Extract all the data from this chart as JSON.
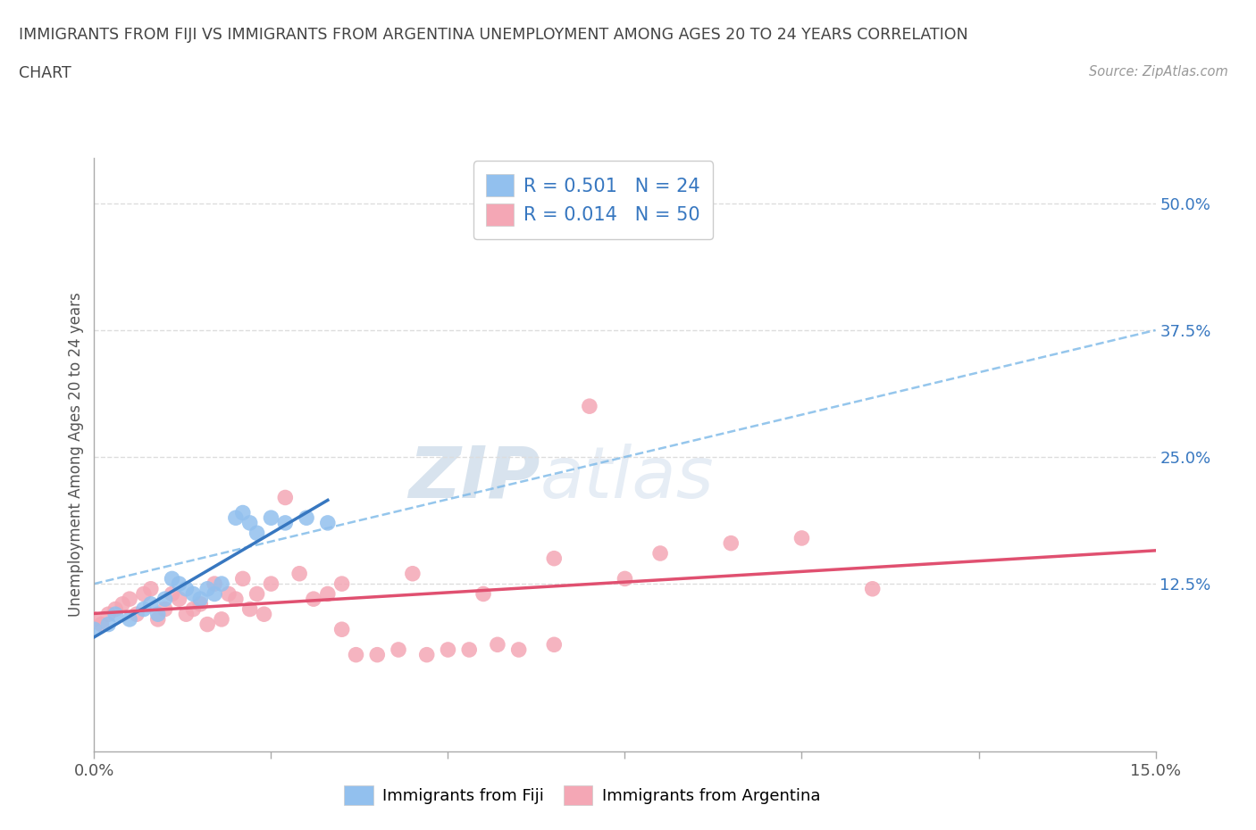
{
  "title_line1": "IMMIGRANTS FROM FIJI VS IMMIGRANTS FROM ARGENTINA UNEMPLOYMENT AMONG AGES 20 TO 24 YEARS CORRELATION",
  "title_line2": "CHART",
  "source": "Source: ZipAtlas.com",
  "ylabel": "Unemployment Among Ages 20 to 24 years",
  "xmin": 0.0,
  "xmax": 0.15,
  "ymin": -0.04,
  "ymax": 0.545,
  "right_yticks": [
    0.125,
    0.25,
    0.375,
    0.5
  ],
  "right_yticklabels": [
    "12.5%",
    "25.0%",
    "37.5%",
    "50.0%"
  ],
  "fiji_R": 0.501,
  "fiji_N": 24,
  "argentina_R": 0.014,
  "argentina_N": 50,
  "fiji_color": "#92C0EE",
  "argentina_color": "#F4A7B5",
  "fiji_line_color": "#3777C0",
  "argentina_line_color": "#E05070",
  "trendline_color": "#7BB8E8",
  "background_color": "#FFFFFF",
  "fiji_x": [
    0.0,
    0.002,
    0.003,
    0.005,
    0.007,
    0.008,
    0.009,
    0.01,
    0.011,
    0.012,
    0.013,
    0.014,
    0.015,
    0.016,
    0.017,
    0.018,
    0.02,
    0.021,
    0.022,
    0.023,
    0.025,
    0.027,
    0.03,
    0.033
  ],
  "fiji_y": [
    0.08,
    0.085,
    0.095,
    0.09,
    0.1,
    0.105,
    0.095,
    0.11,
    0.13,
    0.125,
    0.12,
    0.115,
    0.11,
    0.12,
    0.115,
    0.125,
    0.19,
    0.195,
    0.185,
    0.175,
    0.19,
    0.185,
    0.19,
    0.185
  ],
  "argentina_x": [
    0.0,
    0.001,
    0.002,
    0.003,
    0.004,
    0.005,
    0.006,
    0.007,
    0.008,
    0.009,
    0.01,
    0.011,
    0.012,
    0.013,
    0.014,
    0.015,
    0.016,
    0.017,
    0.018,
    0.019,
    0.02,
    0.021,
    0.022,
    0.023,
    0.024,
    0.025,
    0.027,
    0.029,
    0.031,
    0.033,
    0.035,
    0.037,
    0.04,
    0.043,
    0.047,
    0.05,
    0.053,
    0.057,
    0.06,
    0.065,
    0.07,
    0.08,
    0.09,
    0.1,
    0.11,
    0.035,
    0.045,
    0.055,
    0.065,
    0.075
  ],
  "argentina_y": [
    0.09,
    0.085,
    0.095,
    0.1,
    0.105,
    0.11,
    0.095,
    0.115,
    0.12,
    0.09,
    0.1,
    0.115,
    0.11,
    0.095,
    0.1,
    0.105,
    0.085,
    0.125,
    0.09,
    0.115,
    0.11,
    0.13,
    0.1,
    0.115,
    0.095,
    0.125,
    0.21,
    0.135,
    0.11,
    0.115,
    0.08,
    0.055,
    0.055,
    0.06,
    0.055,
    0.06,
    0.06,
    0.065,
    0.06,
    0.065,
    0.3,
    0.155,
    0.165,
    0.17,
    0.12,
    0.125,
    0.135,
    0.115,
    0.15,
    0.13
  ],
  "watermark": "ZIPatlas",
  "grid_color": "#DDDDDD",
  "xticks": [
    0.0,
    0.025,
    0.05,
    0.075,
    0.1,
    0.125,
    0.15
  ],
  "xtick_labels_show": [
    "0.0%",
    "",
    "",
    "",
    "",
    "",
    "15.0%"
  ]
}
